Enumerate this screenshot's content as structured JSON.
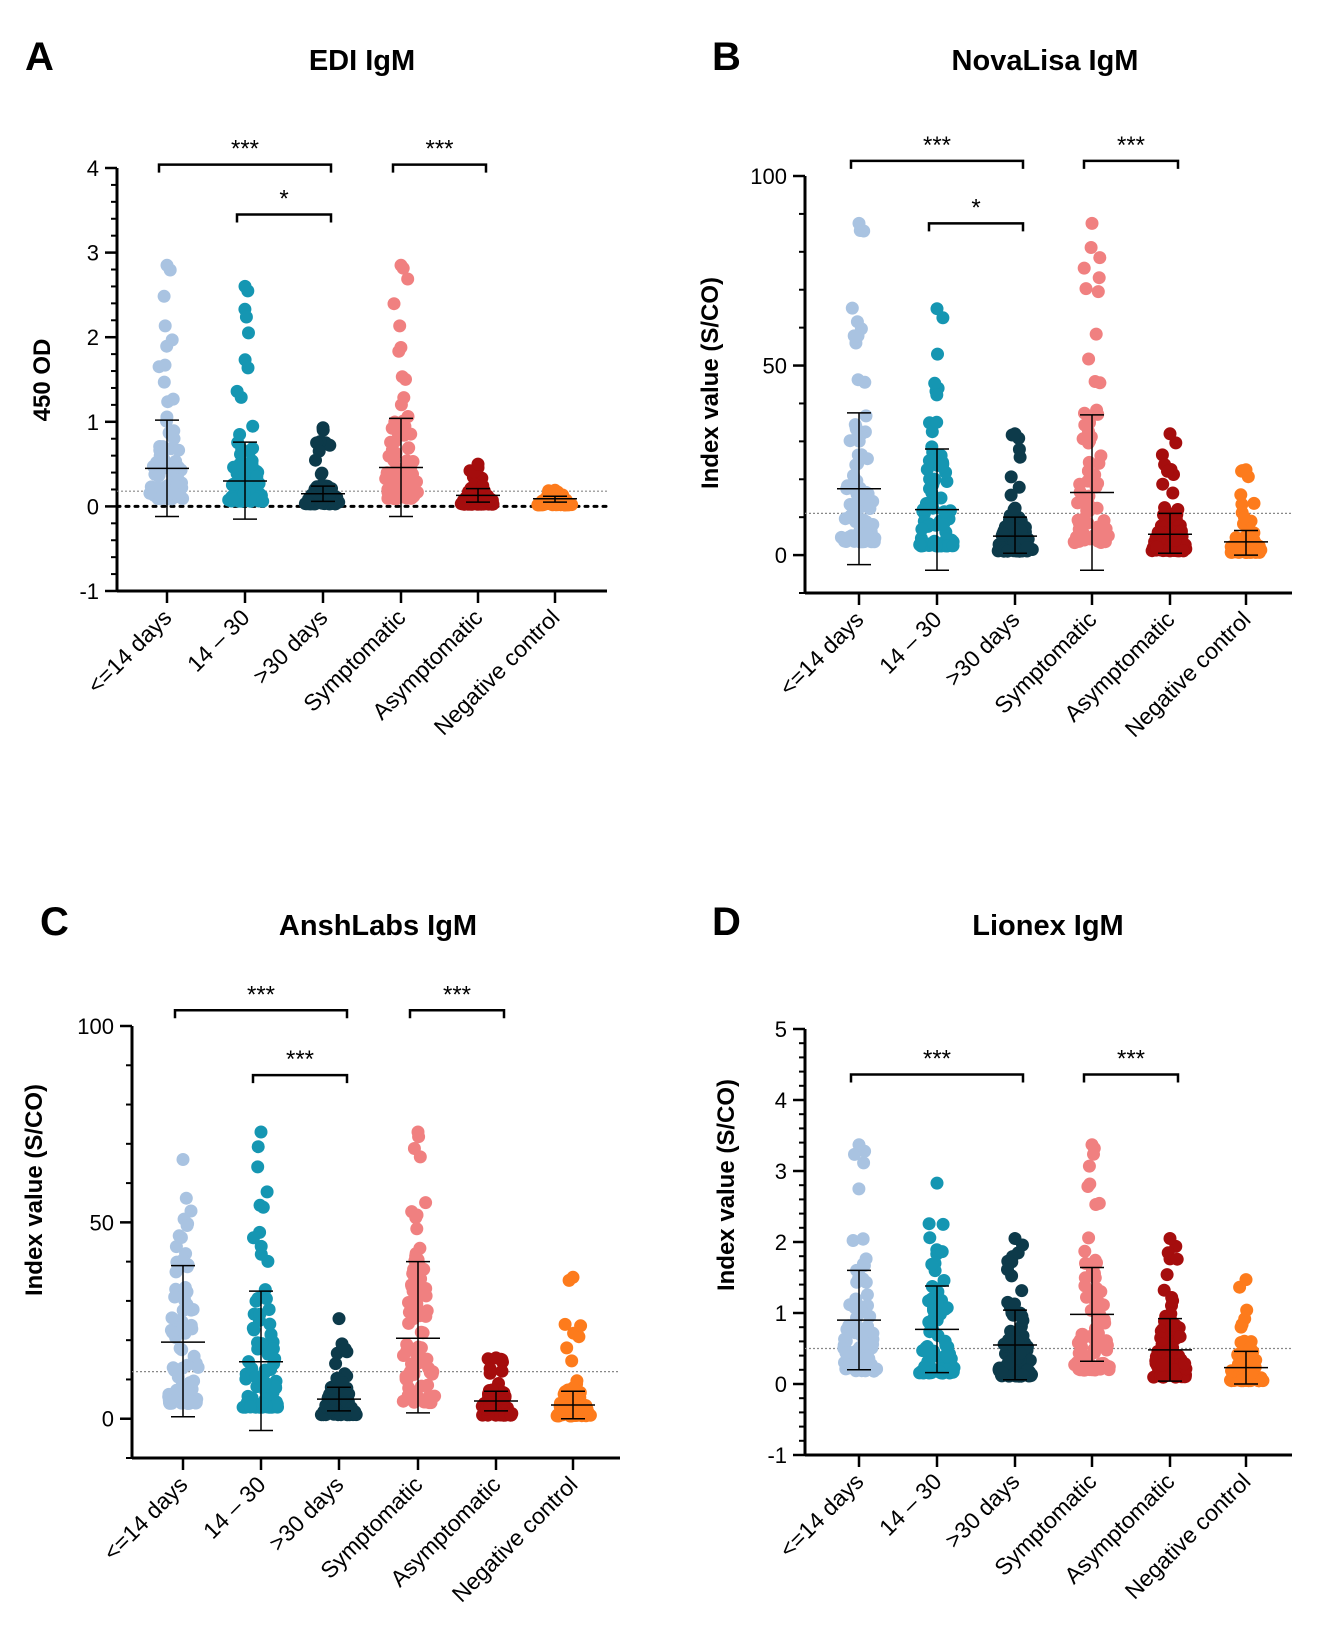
{
  "figure": {
    "categories": [
      "<=14 days",
      "14 – 30",
      ">30 days",
      "Symptomatic",
      "Asymptomatic",
      "Negative control"
    ],
    "colors": [
      "#a9c3e1",
      "#1596b2",
      "#0d3a4a",
      "#f08080",
      "#a50d0d",
      "#fd7b1c"
    ]
  },
  "chart_data": [
    {
      "type": "scatter",
      "panel": "A",
      "title": "EDI IgM",
      "xlabel": "",
      "ylabel": "450 OD",
      "ylim": [
        -1,
        4
      ],
      "yticks": [
        -1,
        0,
        1,
        2,
        3,
        4
      ],
      "cutoff": 0.18,
      "zero_line": true,
      "groups": [
        {
          "name": "<=14 days",
          "mean": 0.45,
          "sd_low": -0.12,
          "sd_high": 1.02,
          "max": 2.85
        },
        {
          "name": "14 – 30",
          "mean": 0.3,
          "sd_low": -0.15,
          "sd_high": 0.76,
          "max": 2.6
        },
        {
          "name": ">30 days",
          "mean": 0.15,
          "sd_low": 0.06,
          "sd_high": 0.24,
          "max": 0.93
        },
        {
          "name": "Symptomatic",
          "mean": 0.46,
          "sd_low": -0.12,
          "sd_high": 1.04,
          "max": 2.85
        },
        {
          "name": "Asymptomatic",
          "mean": 0.13,
          "sd_low": 0.05,
          "sd_high": 0.21,
          "max": 0.5
        },
        {
          "name": "Negative control",
          "mean": 0.09,
          "sd_low": 0.05,
          "sd_high": 0.12,
          "max": 0.19
        }
      ],
      "significance": [
        {
          "from": 0,
          "to": 2,
          "label": "***",
          "y": 4.04
        },
        {
          "from": 1,
          "to": 2,
          "label": "*",
          "y": 3.45
        },
        {
          "from": 3,
          "to": 4,
          "label": "***",
          "y": 4.04
        }
      ]
    },
    {
      "type": "scatter",
      "panel": "B",
      "title": "NovaLisa IgM",
      "xlabel": "",
      "ylabel": "Index value (S/CO)",
      "ylim": [
        -10,
        100
      ],
      "yticks": [
        0,
        50,
        100
      ],
      "cutoff": 11,
      "zero_line": false,
      "groups": [
        {
          "name": "<=14 days",
          "mean": 17.5,
          "sd_low": -2.5,
          "sd_high": 37.5,
          "max": 87.5
        },
        {
          "name": "14 – 30",
          "mean": 12,
          "sd_low": -4,
          "sd_high": 28,
          "max": 65
        },
        {
          "name": ">30 days",
          "mean": 5,
          "sd_low": 0.5,
          "sd_high": 10,
          "max": 32
        },
        {
          "name": "Symptomatic",
          "mean": 16.5,
          "sd_low": -4,
          "sd_high": 37,
          "max": 87.5
        },
        {
          "name": "Asymptomatic",
          "mean": 5.5,
          "sd_low": 0.5,
          "sd_high": 11,
          "max": 32
        },
        {
          "name": "Negative control",
          "mean": 3.5,
          "sd_low": 0,
          "sd_high": 6.5,
          "max": 22.5
        }
      ],
      "significance": [
        {
          "from": 0,
          "to": 2,
          "label": "***",
          "y": 104
        },
        {
          "from": 1,
          "to": 2,
          "label": "*",
          "y": 87.5
        },
        {
          "from": 3,
          "to": 4,
          "label": "***",
          "y": 104
        }
      ]
    },
    {
      "type": "scatter",
      "panel": "C",
      "title": "AnshLabs IgM",
      "xlabel": "",
      "ylabel": "Index value (S/CO)",
      "ylim": [
        -10,
        100
      ],
      "yticks": [
        0,
        50,
        100
      ],
      "cutoff": 12,
      "zero_line": false,
      "groups": [
        {
          "name": "<=14 days",
          "mean": 19.5,
          "sd_low": 0.5,
          "sd_high": 39,
          "max": 66
        },
        {
          "name": "14 – 30",
          "mean": 14.5,
          "sd_low": -3,
          "sd_high": 32.5,
          "max": 73
        },
        {
          "name": ">30 days",
          "mean": 5,
          "sd_low": 2,
          "sd_high": 8,
          "max": 25.5
        },
        {
          "name": "Symptomatic",
          "mean": 20.5,
          "sd_low": 1.5,
          "sd_high": 40,
          "max": 73
        },
        {
          "name": "Asymptomatic",
          "mean": 4.5,
          "sd_low": 2,
          "sd_high": 7,
          "max": 15.5
        },
        {
          "name": "Negative control",
          "mean": 3.5,
          "sd_low": 0,
          "sd_high": 7,
          "max": 36
        }
      ],
      "significance": [
        {
          "from": 0,
          "to": 2,
          "label": "***",
          "y": 104
        },
        {
          "from": 1,
          "to": 2,
          "label": "***",
          "y": 87.5
        },
        {
          "from": 3,
          "to": 4,
          "label": "***",
          "y": 104
        }
      ]
    },
    {
      "type": "scatter",
      "panel": "D",
      "title": "Lionex IgM",
      "xlabel": "",
      "ylabel": "Index value (S/CO)",
      "ylim": [
        -1,
        5
      ],
      "yticks": [
        -1,
        0,
        1,
        2,
        3,
        4,
        5
      ],
      "cutoff": 0.5,
      "zero_line": false,
      "groups": [
        {
          "name": "<=14 days",
          "mean": 0.9,
          "sd_low": 0.2,
          "sd_high": 1.6,
          "max": 3.37
        },
        {
          "name": "14 – 30",
          "mean": 0.77,
          "sd_low": 0.16,
          "sd_high": 1.38,
          "max": 2.83
        },
        {
          "name": ">30 days",
          "mean": 0.55,
          "sd_low": 0.06,
          "sd_high": 1.04,
          "max": 2.05
        },
        {
          "name": "Symptomatic",
          "mean": 0.98,
          "sd_low": 0.32,
          "sd_high": 1.64,
          "max": 3.37
        },
        {
          "name": "Asymptomatic",
          "mean": 0.48,
          "sd_low": 0.04,
          "sd_high": 0.92,
          "max": 2.05
        },
        {
          "name": "Negative control",
          "mean": 0.23,
          "sd_low": 0,
          "sd_high": 0.46,
          "max": 1.47
        }
      ],
      "significance": [
        {
          "from": 0,
          "to": 2,
          "label": "***",
          "y": 4.36
        },
        {
          "from": 3,
          "to": 4,
          "label": "***",
          "y": 4.36
        }
      ]
    }
  ]
}
